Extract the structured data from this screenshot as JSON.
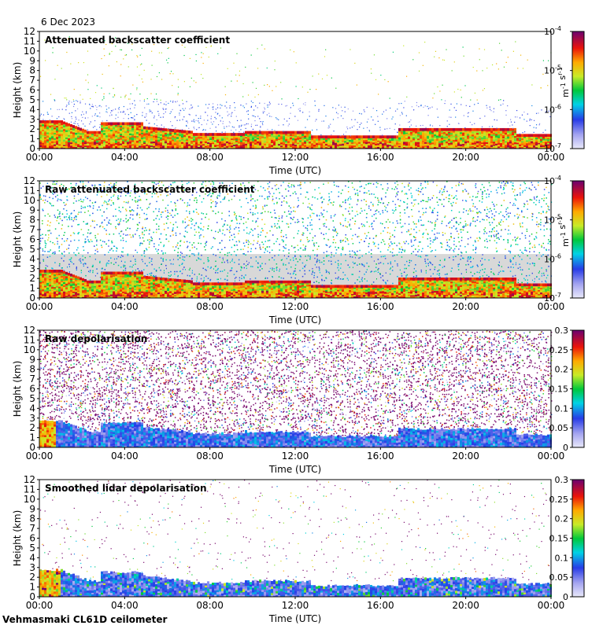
{
  "date": "6 Dec 2023",
  "footer": "Vehmasmaki CL61D ceilometer",
  "chart_data": [
    {
      "type": "heatmap",
      "title": "Attenuated backscatter coefficient",
      "xlabel": "Time (UTC)",
      "ylabel": "Height (km)",
      "x_ticks": [
        "00:00",
        "04:00",
        "08:00",
        "12:00",
        "16:00",
        "20:00",
        "00:00"
      ],
      "y_ticks": [
        0,
        1,
        2,
        3,
        4,
        5,
        6,
        7,
        8,
        9,
        10,
        11,
        12
      ],
      "ylim": [
        0,
        12
      ],
      "colorbar": {
        "scale": "log",
        "range": [
          1e-07,
          0.0001
        ],
        "tick_labels": [
          "10-7",
          "10-6",
          "10-5",
          "10-4"
        ],
        "units": "m-1 sr-1"
      },
      "field": "masked"
    },
    {
      "type": "heatmap",
      "title": "Raw attenuated backscatter coefficient",
      "xlabel": "Time (UTC)",
      "ylabel": "Height (km)",
      "x_ticks": [
        "00:00",
        "04:00",
        "08:00",
        "12:00",
        "16:00",
        "20:00",
        "00:00"
      ],
      "y_ticks": [
        0,
        1,
        2,
        3,
        4,
        5,
        6,
        7,
        8,
        9,
        10,
        11,
        12
      ],
      "ylim": [
        0,
        12
      ],
      "colorbar": {
        "scale": "log",
        "range": [
          1e-07,
          0.0001
        ],
        "tick_labels": [
          "10-7",
          "10-6",
          "10-5",
          "10-4"
        ],
        "units": "m-1 sr-1"
      },
      "field": "raw"
    },
    {
      "type": "heatmap",
      "title": "Raw depolarisation",
      "xlabel": "Time (UTC)",
      "ylabel": "Height (km)",
      "x_ticks": [
        "00:00",
        "04:00",
        "08:00",
        "12:00",
        "16:00",
        "20:00",
        "00:00"
      ],
      "y_ticks": [
        0,
        1,
        2,
        3,
        4,
        5,
        6,
        7,
        8,
        9,
        10,
        11,
        12
      ],
      "ylim": [
        0,
        12
      ],
      "colorbar": {
        "scale": "linear",
        "range": [
          0,
          0.3
        ],
        "tick_labels": [
          "0",
          "0.05",
          "0.1",
          "0.15",
          "0.2",
          "0.25",
          "0.3"
        ],
        "units": ""
      },
      "field": "depol_raw"
    },
    {
      "type": "heatmap",
      "title": "Smoothed lidar depolarisation",
      "xlabel": "Time (UTC)",
      "ylabel": "Height (km)",
      "x_ticks": [
        "00:00",
        "04:00",
        "08:00",
        "12:00",
        "16:00",
        "20:00",
        "00:00"
      ],
      "y_ticks": [
        0,
        1,
        2,
        3,
        4,
        5,
        6,
        7,
        8,
        9,
        10,
        11,
        12
      ],
      "ylim": [
        0,
        12
      ],
      "colorbar": {
        "scale": "linear",
        "range": [
          0,
          0.3
        ],
        "tick_labels": [
          "0",
          "0.05",
          "0.1",
          "0.15",
          "0.2",
          "0.25",
          "0.3"
        ],
        "units": ""
      },
      "field": "depol_smooth"
    }
  ]
}
